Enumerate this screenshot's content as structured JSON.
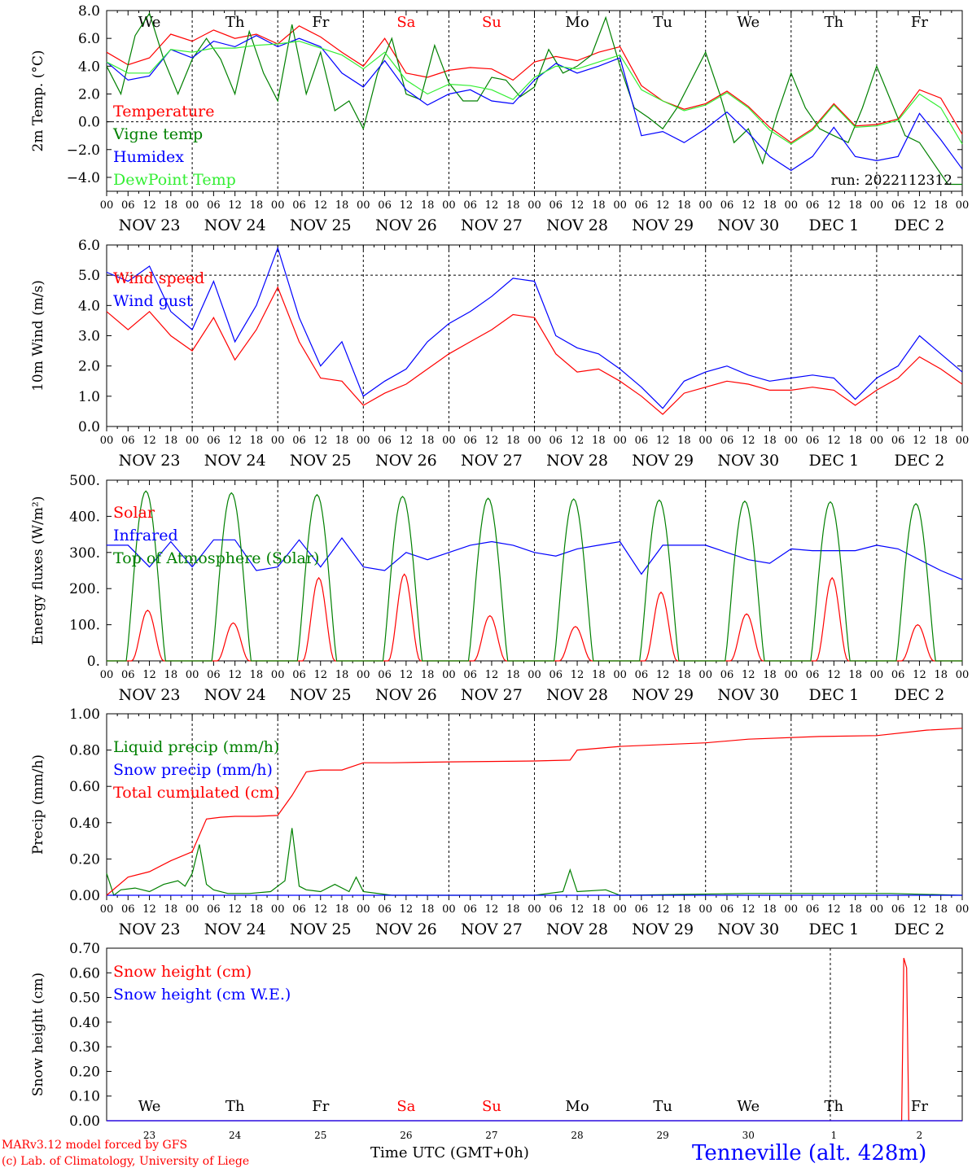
{
  "footer": {
    "credit_line1": "MARv3.12 model forced by GFS",
    "credit_line2": "(c) Lab. of Climatology, University of Liege",
    "xlabel": "Time UTC (GMT+0h)",
    "station": "Tenneville (alt. 428m)",
    "run": "run: 2022112312"
  },
  "colors": {
    "red": "#ff0000",
    "green": "#008000",
    "blue": "#0000ff",
    "lightgreen": "#33ee33",
    "weekend": "#ff0000",
    "text": "#000000"
  },
  "days": {
    "weekday_abbr": [
      "We",
      "Th",
      "Fr",
      "Sa",
      "Su",
      "Mo",
      "Tu",
      "We",
      "Th",
      "Fr"
    ],
    "weekend_flags": [
      false,
      false,
      false,
      true,
      true,
      false,
      false,
      false,
      false,
      false
    ],
    "date_labels": [
      "NOV 23",
      "NOV 24",
      "NOV 25",
      "NOV 26",
      "NOV 27",
      "NOV 28",
      "NOV 29",
      "NOV 30",
      "DEC  1",
      "DEC  2"
    ],
    "day_numbers": [
      "23",
      "24",
      "25",
      "26",
      "27",
      "28",
      "29",
      "30",
      "1",
      "2"
    ],
    "hour_ticks": [
      "00",
      "06",
      "12",
      "18"
    ],
    "final_hour": "00"
  },
  "chart_data": [
    {
      "type": "line",
      "ylabel": "2m Temp. (°C)",
      "ylim": [
        -5,
        8
      ],
      "yticks": [
        -4,
        -2,
        0,
        2,
        4,
        6,
        8
      ],
      "ytick_labels": [
        "−4.0",
        "−2.0",
        "0.0",
        "2.0",
        "4.0",
        "6.0",
        "8.0"
      ],
      "hline": 0,
      "x_unit": "hours since NOV 23 00 UTC",
      "series": [
        {
          "name": "Temperature",
          "color": "#ff0000",
          "x": [
            0,
            6,
            12,
            18,
            24,
            30,
            36,
            42,
            48,
            54,
            60,
            66,
            72,
            78,
            84,
            90,
            96,
            102,
            108,
            114,
            120,
            126,
            132,
            138,
            144,
            150,
            156,
            162,
            168,
            174,
            180,
            186,
            192,
            198,
            204,
            210,
            216,
            222,
            228,
            234,
            240
          ],
          "y": [
            5.0,
            4.1,
            4.6,
            6.3,
            5.8,
            6.6,
            6.0,
            6.3,
            5.6,
            6.9,
            6.1,
            5.0,
            4.0,
            6.0,
            3.5,
            3.2,
            3.7,
            3.9,
            3.8,
            3.0,
            4.3,
            4.7,
            4.4,
            5.0,
            5.4,
            2.6,
            1.5,
            0.9,
            1.3,
            2.2,
            1.1,
            -0.4,
            -1.5,
            -0.5,
            1.3,
            -0.3,
            -0.2,
            0.2,
            2.3,
            1.7,
            -0.9
          ]
        },
        {
          "name": "Vigne temp",
          "color": "#008000",
          "x": [
            0,
            4,
            8,
            12,
            16,
            20,
            24,
            28,
            32,
            36,
            40,
            44,
            48,
            52,
            56,
            60,
            64,
            68,
            72,
            76,
            80,
            84,
            88,
            92,
            96,
            100,
            104,
            108,
            112,
            116,
            120,
            124,
            128,
            132,
            136,
            140,
            144,
            148,
            152,
            156,
            160,
            164,
            168,
            172,
            176,
            180,
            184,
            188,
            192,
            196,
            200,
            204,
            208,
            212,
            216,
            220,
            224,
            228,
            232,
            236,
            240
          ],
          "y": [
            4.0,
            2.0,
            6.2,
            7.8,
            4.5,
            2.0,
            4.5,
            6.0,
            4.5,
            2.0,
            6.5,
            3.5,
            1.5,
            7.0,
            2.0,
            5.0,
            0.8,
            1.5,
            -0.5,
            3.5,
            6.0,
            2.0,
            1.6,
            5.5,
            2.8,
            1.5,
            1.5,
            3.2,
            3.0,
            1.8,
            2.5,
            5.2,
            3.5,
            4.0,
            4.8,
            7.5,
            4.0,
            1.0,
            0.3,
            -0.5,
            1.0,
            3.0,
            5.0,
            2.0,
            -1.5,
            -0.5,
            -3.0,
            0.5,
            3.5,
            1.0,
            -0.5,
            -1.0,
            -1.5,
            1.0,
            4.0,
            1.5,
            -1.0,
            -1.5,
            -3.0,
            -4.5,
            -4.5
          ]
        },
        {
          "name": "Humidex",
          "color": "#0000ff",
          "x": [
            0,
            6,
            12,
            18,
            24,
            30,
            36,
            42,
            48,
            54,
            60,
            66,
            72,
            78,
            84,
            90,
            96,
            102,
            108,
            114,
            120,
            126,
            132,
            138,
            144,
            150,
            156,
            162,
            168,
            174,
            180,
            186,
            192,
            198,
            204,
            210,
            216,
            222,
            228,
            234,
            240
          ],
          "y": [
            4.3,
            3.0,
            3.3,
            5.2,
            4.6,
            5.8,
            5.4,
            6.2,
            5.4,
            6.0,
            5.4,
            3.5,
            2.5,
            4.4,
            2.3,
            1.2,
            2.0,
            2.3,
            1.5,
            1.3,
            3.0,
            4.2,
            3.5,
            4.0,
            4.6,
            -1.0,
            -0.7,
            -1.5,
            -0.5,
            0.7,
            -0.8,
            -2.5,
            -3.5,
            -2.5,
            -0.4,
            -2.5,
            -2.8,
            -2.5,
            0.6,
            -1.3,
            -3.4
          ]
        },
        {
          "name": "DewPoint Temp",
          "color": "#33ee33",
          "x": [
            0,
            6,
            12,
            18,
            24,
            30,
            36,
            42,
            48,
            54,
            60,
            66,
            72,
            78,
            84,
            90,
            96,
            102,
            108,
            114,
            120,
            126,
            132,
            138,
            144,
            150,
            156,
            162,
            168,
            174,
            180,
            186,
            192,
            198,
            204,
            210,
            216,
            222,
            228,
            234,
            240
          ],
          "y": [
            4.3,
            3.5,
            3.5,
            5.2,
            5.0,
            5.3,
            5.3,
            5.5,
            5.6,
            5.8,
            5.3,
            4.8,
            3.8,
            5.0,
            3.0,
            2.0,
            2.7,
            2.6,
            2.3,
            1.6,
            3.2,
            4.0,
            3.8,
            4.3,
            4.8,
            2.3,
            1.5,
            0.8,
            1.2,
            2.1,
            1.0,
            -0.6,
            -1.6,
            -0.6,
            1.2,
            -0.4,
            -0.3,
            0.1,
            2.0,
            1.0,
            -1.6
          ]
        }
      ]
    },
    {
      "type": "line",
      "ylabel": "10m Wind (m/s)",
      "ylim": [
        0,
        6
      ],
      "yticks": [
        0,
        1,
        2,
        3,
        4,
        5,
        6
      ],
      "ytick_labels": [
        "0.0",
        "1.0",
        "2.0",
        "3.0",
        "4.0",
        "5.0",
        "6.0"
      ],
      "hline": 5,
      "series": [
        {
          "name": "Wind speed",
          "color": "#ff0000",
          "x": [
            0,
            6,
            12,
            18,
            24,
            30,
            36,
            42,
            48,
            54,
            60,
            66,
            72,
            78,
            84,
            90,
            96,
            102,
            108,
            114,
            120,
            126,
            132,
            138,
            144,
            150,
            156,
            162,
            168,
            174,
            180,
            186,
            192,
            198,
            204,
            210,
            216,
            222,
            228,
            234,
            240
          ],
          "y": [
            3.8,
            3.2,
            3.8,
            3.0,
            2.5,
            3.6,
            2.2,
            3.2,
            4.6,
            2.8,
            1.6,
            1.5,
            0.7,
            1.1,
            1.4,
            1.9,
            2.4,
            2.8,
            3.2,
            3.7,
            3.6,
            2.4,
            1.8,
            1.9,
            1.5,
            1.0,
            0.4,
            1.1,
            1.3,
            1.5,
            1.4,
            1.2,
            1.2,
            1.3,
            1.2,
            0.7,
            1.2,
            1.6,
            2.3,
            1.9,
            1.4
          ]
        },
        {
          "name": "Wind gust",
          "color": "#0000ff",
          "x": [
            0,
            6,
            12,
            18,
            24,
            30,
            36,
            42,
            48,
            54,
            60,
            66,
            72,
            78,
            84,
            90,
            96,
            102,
            108,
            114,
            120,
            126,
            132,
            138,
            144,
            150,
            156,
            162,
            168,
            174,
            180,
            186,
            192,
            198,
            204,
            210,
            216,
            222,
            228,
            234,
            240
          ],
          "y": [
            5.1,
            4.8,
            5.3,
            3.8,
            3.2,
            4.8,
            2.8,
            4.0,
            5.9,
            3.6,
            2.0,
            2.8,
            1.0,
            1.5,
            1.9,
            2.8,
            3.4,
            3.8,
            4.3,
            4.9,
            4.8,
            3.0,
            2.6,
            2.4,
            1.9,
            1.3,
            0.6,
            1.5,
            1.8,
            2.0,
            1.7,
            1.5,
            1.6,
            1.7,
            1.6,
            0.9,
            1.6,
            2.0,
            3.0,
            2.4,
            1.8
          ]
        }
      ]
    },
    {
      "type": "line",
      "ylabel": "Energy fluxes (W/m²)",
      "ylim": [
        0,
        500
      ],
      "yticks": [
        0,
        100,
        200,
        300,
        400,
        500
      ],
      "ytick_labels": [
        "0.",
        "100.",
        "200.",
        "300.",
        "400.",
        "500."
      ],
      "series": [
        {
          "name": "Solar",
          "color": "#ff0000",
          "day_peaks": [
            140,
            105,
            230,
            240,
            125,
            95,
            190,
            130,
            230,
            100
          ]
        },
        {
          "name": "Infrared",
          "color": "#0000ff",
          "x": [
            0,
            6,
            12,
            18,
            24,
            30,
            36,
            42,
            48,
            54,
            60,
            66,
            72,
            78,
            84,
            90,
            96,
            102,
            108,
            114,
            120,
            126,
            132,
            138,
            144,
            150,
            156,
            162,
            168,
            174,
            180,
            186,
            192,
            198,
            204,
            210,
            216,
            222,
            228,
            234,
            240
          ],
          "y": [
            320,
            320,
            260,
            330,
            260,
            335,
            335,
            250,
            260,
            335,
            260,
            340,
            260,
            250,
            300,
            280,
            300,
            320,
            330,
            320,
            300,
            290,
            310,
            320,
            330,
            240,
            320,
            320,
            320,
            300,
            280,
            270,
            310,
            305,
            305,
            305,
            320,
            310,
            280,
            250,
            225
          ]
        },
        {
          "name": "Top of Atmosphere (Solar)",
          "color": "#008000",
          "day_peaks": [
            470,
            465,
            460,
            455,
            450,
            448,
            445,
            442,
            440,
            435
          ]
        }
      ]
    },
    {
      "type": "line",
      "ylabel": "Precip (mm/h)",
      "ylim": [
        0,
        1
      ],
      "yticks": [
        0,
        0.2,
        0.4,
        0.6,
        0.8,
        1.0
      ],
      "ytick_labels": [
        "0.00",
        "0.20",
        "0.40",
        "0.60",
        "0.80",
        "1.00"
      ],
      "series": [
        {
          "name": "Liquid precip (mm/h)",
          "color": "#008000",
          "x": [
            0,
            2,
            4,
            8,
            12,
            16,
            20,
            22,
            24,
            26,
            28,
            30,
            34,
            40,
            46,
            48,
            50,
            52,
            54,
            56,
            60,
            64,
            68,
            70,
            72,
            80,
            120,
            128,
            130,
            132,
            140,
            144,
            180,
            220,
            240
          ],
          "y": [
            0.12,
            0.0,
            0.03,
            0.04,
            0.02,
            0.06,
            0.08,
            0.05,
            0.12,
            0.28,
            0.06,
            0.03,
            0.01,
            0.01,
            0.02,
            0.05,
            0.08,
            0.37,
            0.05,
            0.03,
            0.02,
            0.06,
            0.02,
            0.1,
            0.02,
            0.0,
            0.0,
            0.02,
            0.14,
            0.02,
            0.03,
            0.0,
            0.01,
            0.01,
            0.0
          ]
        },
        {
          "name": "Snow precip (mm/h)",
          "color": "#0000ff",
          "x": [
            0,
            240
          ],
          "y": [
            0,
            0
          ]
        },
        {
          "name": "Total cumulated (cm)",
          "color": "#ff0000",
          "x": [
            0,
            6,
            12,
            18,
            24,
            28,
            32,
            36,
            42,
            48,
            52,
            56,
            60,
            66,
            72,
            80,
            96,
            120,
            130,
            132,
            144,
            168,
            180,
            200,
            216,
            230,
            240
          ],
          "y": [
            0.0,
            0.1,
            0.13,
            0.19,
            0.24,
            0.42,
            0.43,
            0.435,
            0.435,
            0.44,
            0.55,
            0.68,
            0.69,
            0.69,
            0.73,
            0.73,
            0.735,
            0.74,
            0.745,
            0.8,
            0.82,
            0.84,
            0.86,
            0.875,
            0.88,
            0.91,
            0.92
          ]
        }
      ]
    },
    {
      "type": "line",
      "ylabel": "Snow height (cm)",
      "ylim": [
        0,
        0.7
      ],
      "yticks": [
        0,
        0.1,
        0.2,
        0.3,
        0.4,
        0.5,
        0.6,
        0.7
      ],
      "ytick_labels": [
        "0.00",
        "0.10",
        "0.20",
        "0.30",
        "0.40",
        "0.50",
        "0.60",
        "0.70"
      ],
      "series": [
        {
          "name": "Snow height (cm)",
          "color": "#ff0000",
          "x": [
            0,
            223.0,
            223.6,
            224.4,
            225.0,
            240
          ],
          "y": [
            0,
            0,
            0.66,
            0.62,
            0,
            0
          ]
        },
        {
          "name": "Snow height (cm W.E.)",
          "color": "#0000ff",
          "x": [
            0,
            240
          ],
          "y": [
            0,
            0
          ]
        }
      ]
    }
  ]
}
